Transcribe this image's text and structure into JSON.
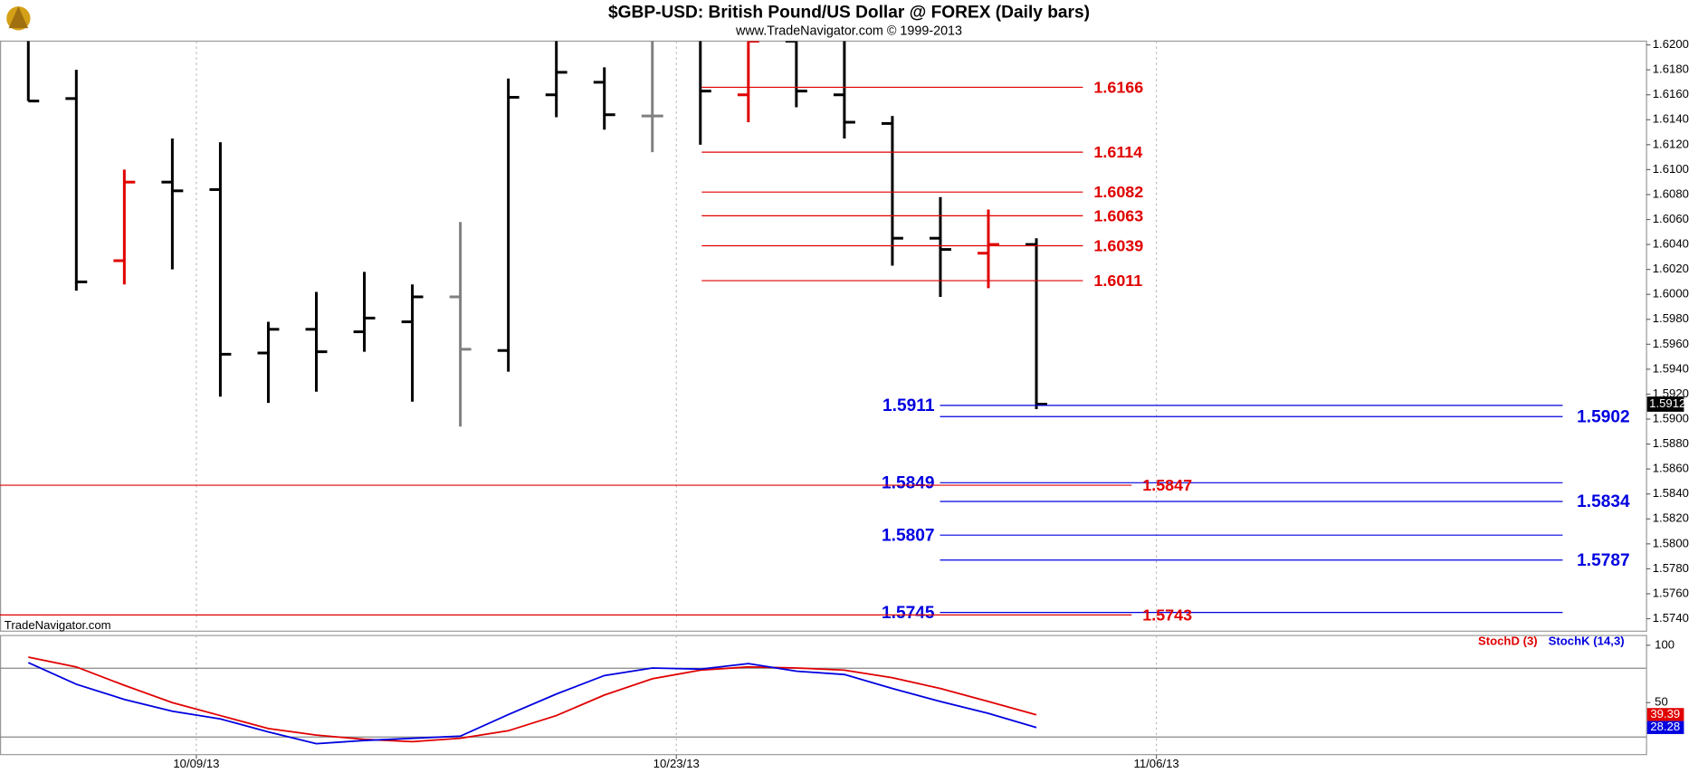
{
  "chart_data": [
    {
      "type": "ohlc",
      "title": "$GBP-USD:  British Pound/US Dollar @ FOREX  (Daily bars)",
      "subtitle": "www.TradeNavigator.com © 1999-2013",
      "watermark": "TradeNavigator.com",
      "open": [
        1.621,
        1.6157,
        1.6027,
        1.609,
        1.6084,
        1.5953,
        1.5972,
        1.597,
        1.5978,
        1.5998,
        1.5955,
        1.616,
        1.617,
        1.6143,
        1.621,
        1.616,
        1.6203,
        1.616,
        1.6137,
        1.6045,
        1.6033,
        1.604
      ],
      "high": [
        1.621,
        1.618,
        1.61,
        1.6125,
        1.6122,
        1.5978,
        1.6002,
        1.6018,
        1.6008,
        1.6058,
        1.6173,
        1.621,
        1.6182,
        1.621,
        1.621,
        1.6203,
        1.621,
        1.621,
        1.6143,
        1.6078,
        1.6068,
        1.6045
      ],
      "low": [
        1.6155,
        1.6003,
        1.6008,
        1.602,
        1.5918,
        1.5913,
        1.5922,
        1.5954,
        1.5914,
        1.5894,
        1.5938,
        1.6142,
        1.6132,
        1.6114,
        1.612,
        1.6138,
        1.615,
        1.6125,
        1.6023,
        1.5998,
        1.6005,
        1.5908
      ],
      "close": [
        1.6155,
        1.601,
        1.609,
        1.6083,
        1.5952,
        1.5972,
        1.5954,
        1.5981,
        1.5998,
        1.5956,
        1.6158,
        1.6178,
        1.6144,
        1.6143,
        1.6163,
        1.6203,
        1.6163,
        1.6138,
        1.6045,
        1.6036,
        1.604,
        1.5912
      ],
      "colors": [
        "#000000",
        "#000000",
        "#e00000",
        "#000000",
        "#000000",
        "#000000",
        "#000000",
        "#000000",
        "#000000",
        "#808080",
        "#000000",
        "#000000",
        "#000000",
        "#808080",
        "#000000",
        "#e00000",
        "#000000",
        "#000000",
        "#000000",
        "#000000",
        "#e00000",
        "#000000"
      ],
      "xlim": [
        -0.59,
        33.7
      ],
      "xticks": [
        {
          "value": 3.5,
          "label": "10/09/13"
        },
        {
          "value": 13.5,
          "label": "10/23/13"
        },
        {
          "value": 23.5,
          "label": "11/06/13"
        }
      ],
      "ylim": [
        1.573,
        1.6203
      ],
      "yticks": [
        {
          "value": 1.574,
          "label": "1.5740"
        },
        {
          "value": 1.576,
          "label": "1.5760"
        },
        {
          "value": 1.578,
          "label": "1.5780"
        },
        {
          "value": 1.58,
          "label": "1.5800"
        },
        {
          "value": 1.582,
          "label": "1.5820"
        },
        {
          "value": 1.584,
          "label": "1.5840"
        },
        {
          "value": 1.586,
          "label": "1.5860"
        },
        {
          "value": 1.588,
          "label": "1.5880"
        },
        {
          "value": 1.59,
          "label": "1.5900"
        },
        {
          "value": 1.592,
          "label": "1.5920"
        },
        {
          "value": 1.594,
          "label": "1.5940"
        },
        {
          "value": 1.596,
          "label": "1.5960"
        },
        {
          "value": 1.598,
          "label": "1.5980"
        },
        {
          "value": 1.6,
          "label": "1.6000"
        },
        {
          "value": 1.602,
          "label": "1.6020"
        },
        {
          "value": 1.604,
          "label": "1.6040"
        },
        {
          "value": 1.606,
          "label": "1.6060"
        },
        {
          "value": 1.608,
          "label": "1.6080"
        },
        {
          "value": 1.61,
          "label": "1.6100"
        },
        {
          "value": 1.612,
          "label": "1.6120"
        },
        {
          "value": 1.614,
          "label": "1.6140"
        },
        {
          "value": 1.616,
          "label": "1.6160"
        },
        {
          "value": 1.618,
          "label": "1.6180"
        },
        {
          "value": 1.62,
          "label": "1.6200"
        }
      ],
      "grid_x": true,
      "levels": [
        {
          "value": 1.6166,
          "color": "#e00000"
        },
        {
          "value": 1.6114,
          "color": "#e00000"
        },
        {
          "value": 1.6082,
          "color": "#e00000"
        },
        {
          "value": 1.6063,
          "color": "#e00000"
        },
        {
          "value": 1.6039,
          "color": "#e00000"
        },
        {
          "value": 1.6011,
          "color": "#e00000"
        },
        {
          "value": 1.5911,
          "color": "#0000e0"
        },
        {
          "value": 1.5902,
          "color": "#0000e0"
        },
        {
          "value": 1.5849,
          "color": "#0000e0"
        },
        {
          "value": 1.5834,
          "color": "#0000e0"
        },
        {
          "value": 1.5807,
          "color": "#0000e0"
        },
        {
          "value": 1.5787,
          "color": "#0000e0"
        },
        {
          "value": 1.5745,
          "color": "#0000e0"
        },
        {
          "value": 1.5847,
          "color": "#e00000"
        },
        {
          "value": 1.5743,
          "color": "#e00000"
        }
      ]
    },
    {
      "type": "line",
      "legend_position": "top-right",
      "series": [
        {
          "name": "StochD (3)",
          "color": "#e00000",
          "values": [
            89.6,
            81.1,
            65.1,
            50,
            38.7,
            27.4,
            21.7,
            18,
            16,
            18.9,
            25.5,
            38.7,
            56.6,
            70.8,
            78.3,
            81.1,
            80.2,
            78.3,
            71.7,
            62.3,
            51,
            39.39
          ]
        },
        {
          "name": "StochK (14,3)",
          "color": "#0000e0",
          "values": [
            84.9,
            66,
            52.8,
            42.5,
            35.8,
            24.5,
            14.2,
            17,
            18.9,
            20.8,
            39.6,
            57.5,
            73.6,
            80.2,
            79.2,
            84,
            77.4,
            74.5,
            62.3,
            51,
            40.6,
            28.28
          ]
        }
      ],
      "ylim": [
        4.7,
        108.5
      ],
      "yticks": [
        100,
        50
      ],
      "levels": [
        80,
        20
      ]
    }
  ]
}
